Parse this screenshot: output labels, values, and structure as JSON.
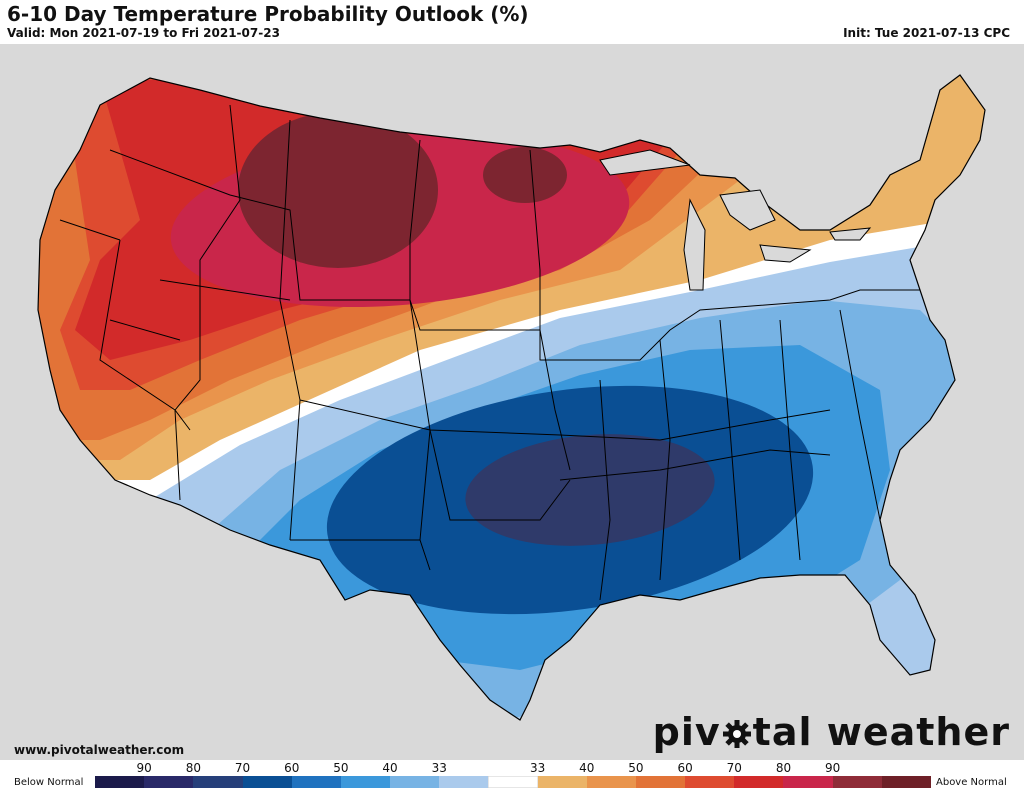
{
  "header": {
    "title": "6-10 Day Temperature Probability Outlook (%)",
    "valid": "Valid: Mon 2021-07-19 to Fri 2021-07-23",
    "init": "Init: Tue 2021-07-13 CPC"
  },
  "footer": {
    "website": "www.pivotalweather.com",
    "brand_before": "piv",
    "brand_after": "tal weather"
  },
  "legend": {
    "below_label": "Below Normal",
    "above_label": "Above Normal",
    "ticks": [
      "90",
      "80",
      "70",
      "60",
      "50",
      "40",
      "33",
      "33",
      "40",
      "50",
      "60",
      "70",
      "80",
      "90"
    ],
    "colors": [
      "#1b1a4a",
      "#292968",
      "#263f7a",
      "#0a4f94",
      "#1f72bf",
      "#3b98db",
      "#77b3e4",
      "#aacaec",
      "#ffffff",
      "#ebb468",
      "#e9944c",
      "#e27337",
      "#de4b30",
      "#d22a2a",
      "#c9264a",
      "#8f2c38",
      "#6e2027"
    ]
  },
  "map": {
    "background": "#d9d9d9",
    "land": "#ffffff",
    "probability_regions": [
      {
        "category": "Above",
        "level": "33"
      },
      {
        "category": "Above",
        "level": "40"
      },
      {
        "category": "Above",
        "level": "50"
      },
      {
        "category": "Above",
        "level": "60"
      },
      {
        "category": "Above",
        "level": "70"
      },
      {
        "category": "Above",
        "level": "80"
      },
      {
        "category": "Above",
        "level": "90"
      },
      {
        "category": "Below",
        "level": "33"
      },
      {
        "category": "Below",
        "level": "40"
      },
      {
        "category": "Below",
        "level": "50"
      },
      {
        "category": "Below",
        "level": "60"
      },
      {
        "category": "Below",
        "level": "70"
      }
    ]
  }
}
